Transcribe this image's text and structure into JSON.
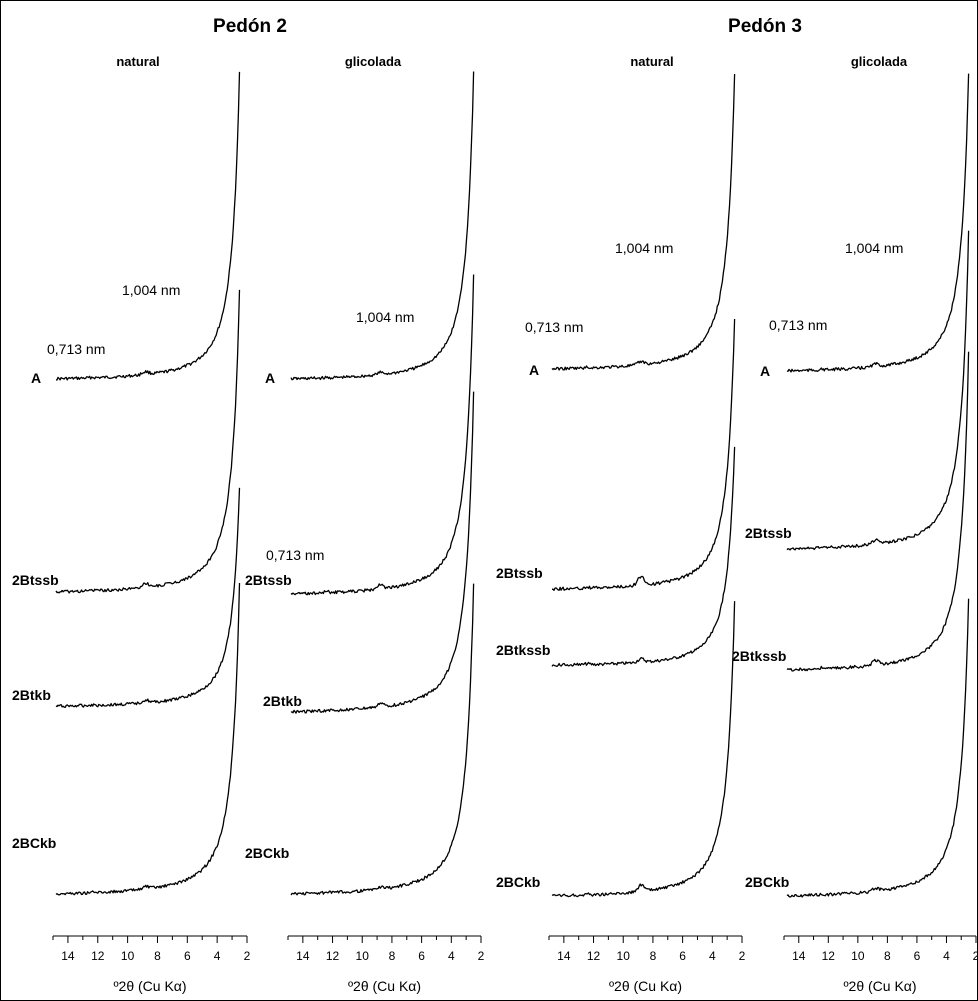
{
  "titles": {
    "pedon2": "Pedón 2",
    "pedon3": "Pedón 3"
  },
  "treatments": [
    "natural",
    "glicolada",
    "natural",
    "glicolada"
  ],
  "axis_label": "º2θ (Cu Kα)",
  "chart_data": {
    "type": "line",
    "xlabel": "º2θ (Cu Kα)",
    "xlim": [
      15,
      2
    ],
    "xticks": [
      14,
      12,
      10,
      8,
      6,
      4,
      2
    ],
    "peak_positions_deg2theta": {
      "1,004 nm": 8.8,
      "0,713 nm": 12.4
    },
    "panels": [
      {
        "pedon": "Pedón 2",
        "treatment": "natural",
        "series": [
          {
            "name": "A",
            "peak10": 0.7,
            "peak7": 0.15,
            "bg": 0.35
          },
          {
            "name": "2Btssb",
            "peak10": 1.0,
            "peak7": 0.3,
            "bg": 0.45
          },
          {
            "name": "2Btkb",
            "peak10": 1.0,
            "peak7": 0.3,
            "bg": 0.45
          },
          {
            "name": "2BCkb",
            "peak10": 0.6,
            "peak7": 0.2,
            "bg": 0.55
          }
        ]
      },
      {
        "pedon": "Pedón 2",
        "treatment": "glicolada",
        "series": [
          {
            "name": "A",
            "peak10": 0.5,
            "peak7": 0.05,
            "bg": 0.3
          },
          {
            "name": "2Btssb",
            "peak10": 1.0,
            "peak7": 0.35,
            "bg": 0.45
          },
          {
            "name": "2Btkb",
            "peak10": 0.8,
            "peak7": 0.15,
            "bg": 0.45
          },
          {
            "name": "2BCkb",
            "peak10": 0.5,
            "peak7": 0.15,
            "bg": 0.55
          }
        ]
      },
      {
        "pedon": "Pedón 3",
        "treatment": "natural",
        "series": [
          {
            "name": "A",
            "peak10": 0.8,
            "peak7": 0.2,
            "bg": 0.35
          },
          {
            "name": "2Btssb",
            "peak10": 2.4,
            "peak7": 0.4,
            "bg": 0.3
          },
          {
            "name": "2Btkssb",
            "peak10": 1.2,
            "peak7": 0.4,
            "bg": 0.3
          },
          {
            "name": "2BCkb",
            "peak10": 1.6,
            "peak7": 0.4,
            "bg": 0.5
          }
        ]
      },
      {
        "pedon": "Pedón 3",
        "treatment": "glicolada",
        "series": [
          {
            "name": "A",
            "peak10": 0.7,
            "peak7": 0.2,
            "bg": 0.35
          },
          {
            "name": "2Btssb",
            "peak10": 0.9,
            "peak7": 0.2,
            "bg": 0.45
          },
          {
            "name": "2Btkssb",
            "peak10": 1.2,
            "peak7": 0.3,
            "bg": 0.45
          },
          {
            "name": "2BCkb",
            "peak10": 0.8,
            "peak7": 0.1,
            "bg": 0.6
          }
        ]
      }
    ]
  },
  "peak_labels": {
    "nm1004": "1,004 nm",
    "nm0713": "0,713 nm"
  },
  "horizons": {
    "p2n": [
      "A",
      "2Btssb",
      "2Btkb",
      "2BCkb"
    ],
    "p2g": [
      "A",
      "2Btssb",
      "2Btkb",
      "2BCkb"
    ],
    "p3n": [
      "A",
      "2Btssb",
      "2Btkssb",
      "2BCkb"
    ],
    "p3g": [
      "A",
      "2Btssb",
      "2Btkssb",
      "2BCkb"
    ]
  }
}
